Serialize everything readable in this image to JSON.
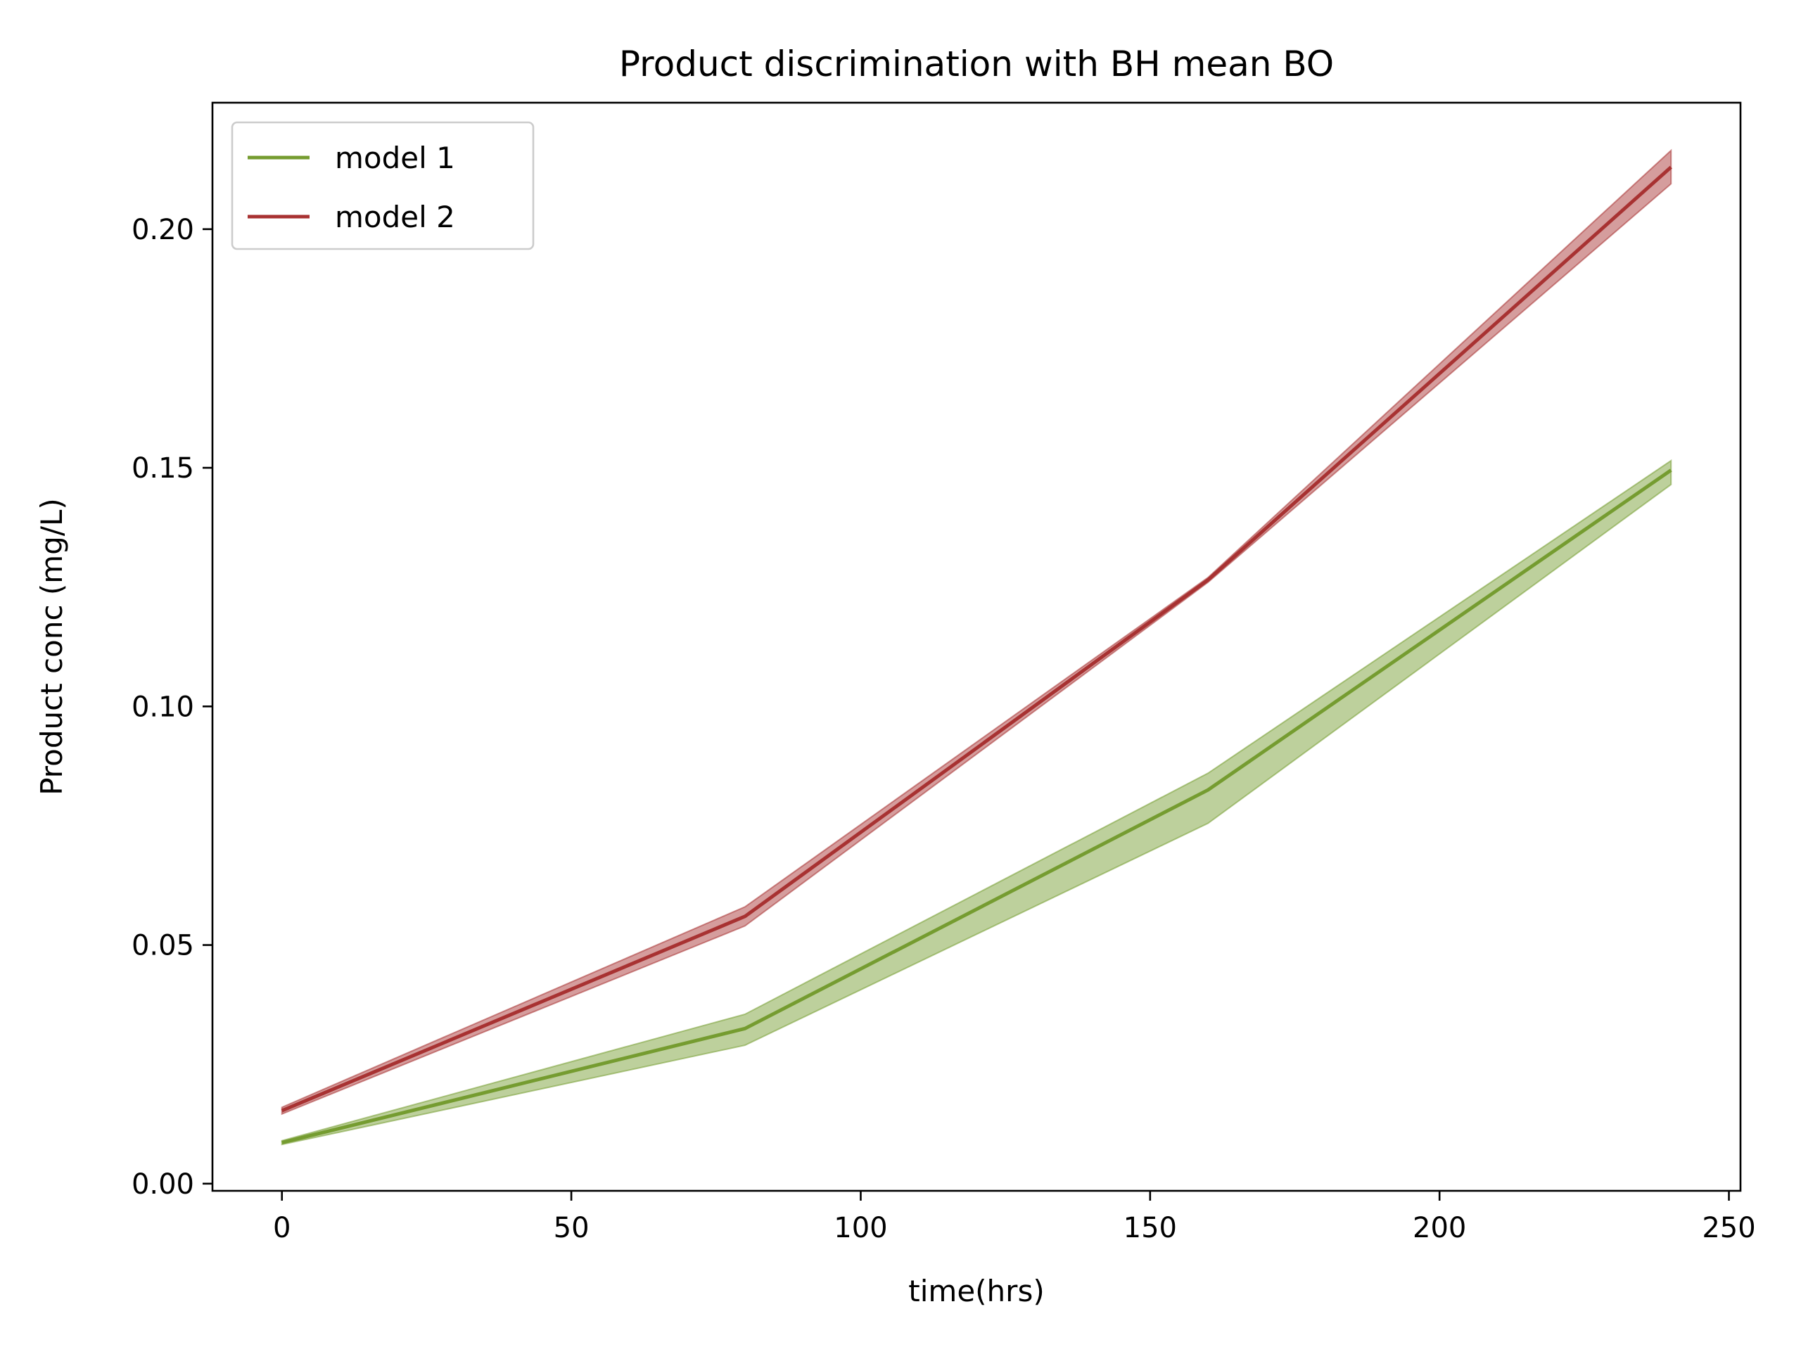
{
  "chart_data": {
    "type": "line",
    "title": "Product discrimination with BH mean BO",
    "xlabel": "time(hrs)",
    "ylabel": "Product conc (mg/L)",
    "xlim": [
      -12,
      252
    ],
    "ylim": [
      -0.0015,
      0.2265
    ],
    "xticks": [
      0,
      50,
      100,
      150,
      200,
      250
    ],
    "yticks": [
      0.0,
      0.05,
      0.1,
      0.15,
      0.2
    ],
    "xtick_labels": [
      "0",
      "50",
      "100",
      "150",
      "200",
      "250"
    ],
    "ytick_labels": [
      "0.00",
      "0.05",
      "0.10",
      "0.15",
      "0.20"
    ],
    "grid": false,
    "legend_position": "top-left",
    "x": [
      0,
      80,
      160,
      240
    ],
    "series": [
      {
        "name": "model 1",
        "color": "#759c30",
        "fill_color": "#759c30",
        "values": [
          0.0086,
          0.0325,
          0.0825,
          0.1495
        ],
        "lower": [
          0.0082,
          0.029,
          0.0755,
          0.1465
        ],
        "upper": [
          0.009,
          0.0355,
          0.086,
          0.1515
        ]
      },
      {
        "name": "model 2",
        "color": "#a83232",
        "fill_color": "#a83232",
        "values": [
          0.0153,
          0.056,
          0.1265,
          0.213
        ],
        "lower": [
          0.0146,
          0.054,
          0.126,
          0.2095
        ],
        "upper": [
          0.016,
          0.058,
          0.127,
          0.2165
        ]
      }
    ]
  }
}
